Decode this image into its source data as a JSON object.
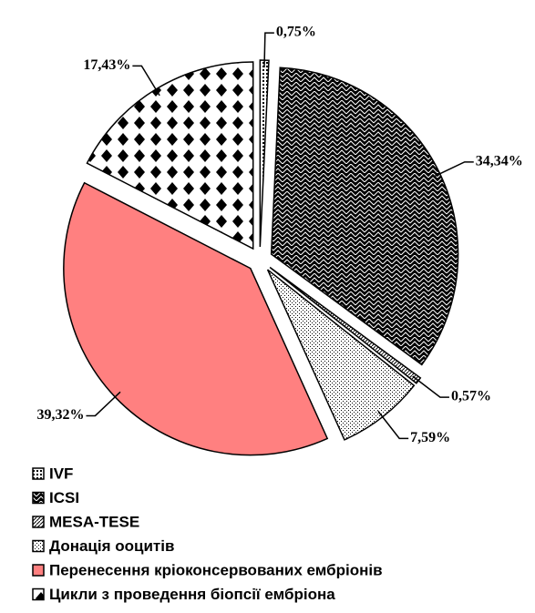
{
  "chart_data": {
    "type": "pie",
    "categories": [
      "IVF",
      "ICSI",
      "MESA-TESE",
      "Донація ооцитів",
      "Перенесення кріоконсервованих ембріонів",
      "Цикли з проведення біопсії ембріона"
    ],
    "values": [
      0.75,
      34.34,
      0.57,
      7.59,
      39.32,
      17.43
    ],
    "value_labels": [
      "0,75%",
      "34,34%",
      "0,57%",
      "7,59%",
      "39,32%",
      "17,43%"
    ],
    "colors": [
      "#ffffff",
      "#000000",
      "#ffffff",
      "#ffffff",
      "#ff8080",
      "#ffffff"
    ]
  }
}
